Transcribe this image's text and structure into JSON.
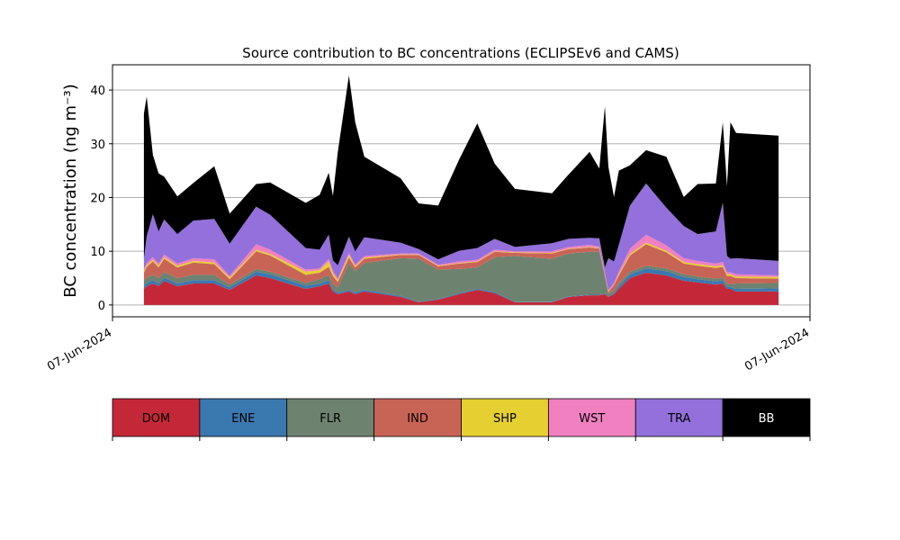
{
  "chart_data": {
    "type": "stacked_area",
    "title": "Source contribution to BC concentrations (ECLIPSEv6 and CAMS)",
    "y_label": "BC concentration (ng m⁻³)",
    "xlim": [
      0,
      100
    ],
    "xticks": [
      {
        "value": 0,
        "label": "07-Jun-2024"
      },
      {
        "value": 100,
        "label": "07-Jun-2024"
      }
    ],
    "ylim": [
      -2.2,
      44.7
    ],
    "yticks": [
      0,
      10,
      20,
      30,
      40
    ],
    "grid": true,
    "legend": "bottom",
    "x": [
      4.5,
      4.9,
      5.8,
      6.6,
      7.4,
      9.3,
      11.6,
      14.6,
      16.8,
      20.6,
      22.6,
      27.7,
      29.7,
      31,
      31.6,
      32.3,
      33.9,
      34.8,
      36.1,
      41.3,
      43.9,
      46.7,
      49.7,
      52.3,
      54.8,
      57.7,
      63,
      65.4,
      68.4,
      69.8,
      70.6,
      71.1,
      71.9,
      72.6,
      74.2,
      76.5,
      79.4,
      81.9,
      83.9,
      86.5,
      87.5,
      88.1,
      88.6,
      89.4,
      95.5
    ],
    "series": [
      {
        "name": "DOM",
        "color": "#c42838",
        "values": [
          3,
          3.5,
          4,
          3.5,
          4.5,
          3.5,
          4,
          4,
          2.8,
          5.5,
          5,
          3,
          3.5,
          4,
          2.5,
          2,
          2.5,
          2,
          2.5,
          1.5,
          0.5,
          1,
          2,
          2.8,
          2.2,
          0.5,
          0.5,
          1.5,
          1.8,
          1.8,
          2,
          1.5,
          2,
          3,
          5,
          6,
          5.5,
          4.5,
          4.2,
          3.8,
          4,
          3,
          3,
          2.5,
          2.5
        ]
      },
      {
        "name": "ENE",
        "color": "#3a78b0",
        "values": [
          0.5,
          0.6,
          0.6,
          0.5,
          0.6,
          0.5,
          0.6,
          0.6,
          0.5,
          0.7,
          0.7,
          0.6,
          0.5,
          0.6,
          0.4,
          0.3,
          0.3,
          0.3,
          0.3,
          0.2,
          0.1,
          0.1,
          0.2,
          0.2,
          0.2,
          0.1,
          0.1,
          0.1,
          0.1,
          0.1,
          0.1,
          0.1,
          0.2,
          0.5,
          0.7,
          0.8,
          0.8,
          0.7,
          0.6,
          0.6,
          0.6,
          0.4,
          0.4,
          0.5,
          0.6
        ]
      },
      {
        "name": "FLR",
        "color": "#6e8270",
        "values": [
          1,
          1,
          1,
          1,
          1,
          1,
          1,
          1,
          0.5,
          0.5,
          0.5,
          0.5,
          0.8,
          1,
          1,
          1,
          5,
          4,
          5,
          7,
          8,
          5.5,
          4.5,
          4,
          6.5,
          8.5,
          8,
          8,
          8,
          8,
          3,
          0.5,
          0.5,
          0.5,
          0.5,
          0.5,
          0.5,
          0.5,
          0.5,
          0.5,
          0.5,
          0.5,
          0.5,
          1,
          1
        ]
      },
      {
        "name": "IND",
        "color": "#c86456",
        "values": [
          1.5,
          2,
          2.5,
          2,
          2.5,
          2,
          2.3,
          2,
          1,
          3.3,
          3,
          1.5,
          1.2,
          1.5,
          1.5,
          1,
          1,
          0.7,
          0.8,
          0.6,
          0.7,
          0.6,
          1,
          1,
          1,
          0.6,
          1,
          0.8,
          0.8,
          0.6,
          0.5,
          0.3,
          1,
          1.5,
          3,
          4,
          3,
          2,
          2,
          2,
          2,
          1.5,
          1.5,
          1,
          0.8
        ]
      },
      {
        "name": "SHP",
        "color": "#e6cf30",
        "values": [
          0.3,
          0.3,
          0.3,
          0.3,
          0.3,
          0.3,
          0.3,
          0.3,
          0.3,
          0.3,
          0.3,
          0.6,
          0.5,
          1,
          0.5,
          0.3,
          0.5,
          0.2,
          0.2,
          0.1,
          0.1,
          0.1,
          0.1,
          0.1,
          0.1,
          0.1,
          0.1,
          0.1,
          0.1,
          0.1,
          0.1,
          0.1,
          0.1,
          0.2,
          0.3,
          0.3,
          0.3,
          0.3,
          0.3,
          0.3,
          0.3,
          0.3,
          0.3,
          0.3,
          0.3
        ]
      },
      {
        "name": "WST",
        "color": "#f080c0",
        "values": [
          0.3,
          0.4,
          0.5,
          0.4,
          0.5,
          0.4,
          0.5,
          0.6,
          0.3,
          1,
          0.8,
          0.4,
          0.3,
          0.5,
          0.4,
          0.3,
          0.4,
          0.3,
          0.3,
          0.2,
          0.2,
          0.2,
          0.3,
          0.3,
          0.3,
          0.2,
          0.3,
          0.3,
          0.4,
          0.3,
          0.3,
          0.2,
          0.3,
          0.5,
          1,
          1.5,
          1,
          0.7,
          0.6,
          0.5,
          0.6,
          0.4,
          0.4,
          0.4,
          0.3
        ]
      },
      {
        "name": "TRA",
        "color": "#9370db",
        "values": [
          2,
          5,
          8,
          6,
          6.5,
          5.5,
          7,
          7.5,
          6,
          7,
          6.5,
          4,
          3.5,
          4.5,
          2,
          2.5,
          3,
          2.5,
          3.5,
          2,
          0.8,
          1,
          2,
          2.2,
          2,
          0.8,
          1.5,
          1.5,
          1.3,
          1.5,
          1,
          6,
          4,
          5,
          8,
          9.5,
          7,
          6,
          5,
          6,
          11,
          3,
          2.5,
          3,
          2.7
        ]
      },
      {
        "name": "BB",
        "color": "#000000",
        "values": [
          27,
          26,
          11,
          10.8,
          8,
          7,
          7,
          9.8,
          5.6,
          4.2,
          6,
          8.4,
          10.2,
          11.5,
          12,
          21,
          30,
          24,
          15,
          12,
          8.5,
          10,
          17,
          23.2,
          14,
          10.8,
          9.3,
          12,
          16,
          13,
          30,
          17,
          12,
          13.8,
          7.5,
          6.2,
          9.5,
          5.4,
          9.3,
          8.9,
          15,
          13,
          25.4,
          23.3,
          23.3
        ]
      }
    ]
  }
}
